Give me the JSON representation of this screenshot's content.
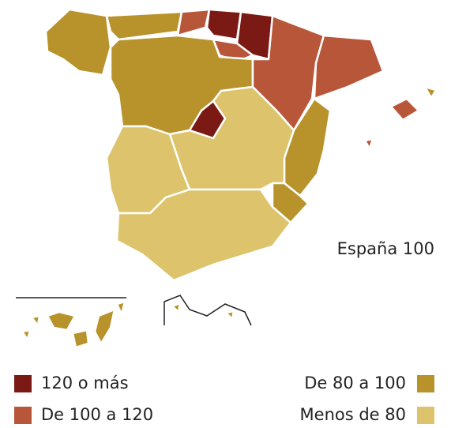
{
  "map": {
    "label": "España 100",
    "legend": [
      {
        "label": "120 o más",
        "color": "#7b1a15"
      },
      {
        "label": "De 100 a 120",
        "color": "#b8563a"
      },
      {
        "label": "De 80 a 100",
        "color": "#b8922b"
      },
      {
        "label": "Menos de 80",
        "color": "#dcc36c"
      }
    ]
  }
}
